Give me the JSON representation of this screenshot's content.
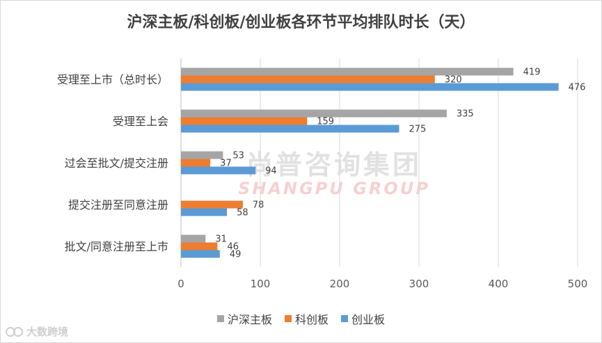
{
  "chart_data": {
    "type": "bar",
    "orientation": "horizontal",
    "title": "沪深主板/科创板/创业板各环节平均排队时长（天）",
    "categories": [
      "受理至上市（总时长）",
      "受理至上会",
      "过会至批文/提交注册",
      "提交注册至同意注册",
      "批文/同意注册至上市"
    ],
    "series": [
      {
        "name": "沪深主板",
        "color": "#a5a5a5",
        "values": [
          419,
          335,
          53,
          null,
          31
        ]
      },
      {
        "name": "科创板",
        "color": "#ed7d31",
        "values": [
          320,
          159,
          37,
          78,
          46
        ]
      },
      {
        "name": "创业板",
        "color": "#5b9bd5",
        "values": [
          476,
          275,
          94,
          58,
          49
        ]
      }
    ],
    "xlim": [
      0,
      500
    ],
    "xticks": [
      0,
      100,
      200,
      300,
      400,
      500
    ],
    "grid": true,
    "legend_position": "bottom"
  },
  "watermark": {
    "cn": "尚普咨询集团",
    "en": "SHANGPU GROUP"
  },
  "corner_logo": {
    "text": "大数跨境"
  }
}
